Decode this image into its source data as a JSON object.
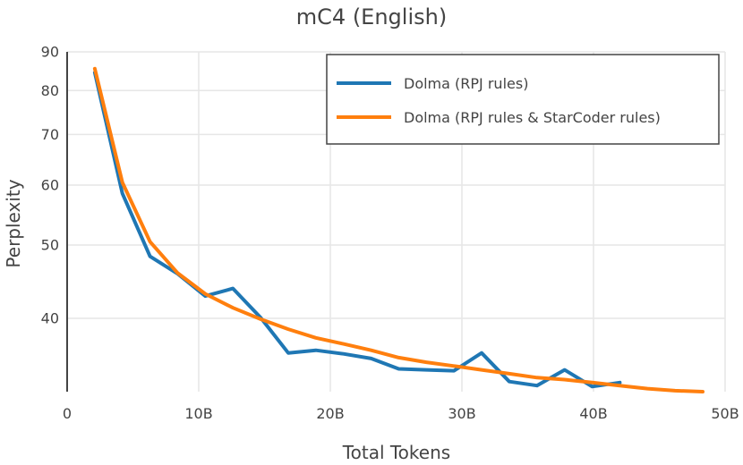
{
  "chart_data": {
    "type": "line",
    "title": "mC4 (English)",
    "xlabel": "Total Tokens",
    "ylabel": "Perplexity",
    "x_scale": "linear",
    "y_scale": "log",
    "xlim": [
      0,
      50000000000
    ],
    "ylim": [
      32,
      90
    ],
    "x_ticks": [
      {
        "value": 0,
        "label": "0"
      },
      {
        "value": 10000000000,
        "label": "10B"
      },
      {
        "value": 20000000000,
        "label": "20B"
      },
      {
        "value": 30000000000,
        "label": "30B"
      },
      {
        "value": 40000000000,
        "label": "40B"
      },
      {
        "value": 50000000000,
        "label": "50B"
      }
    ],
    "y_ticks": [
      {
        "value": 40,
        "label": "40"
      },
      {
        "value": 50,
        "label": "50"
      },
      {
        "value": 60,
        "label": "60"
      },
      {
        "value": 70,
        "label": "70"
      },
      {
        "value": 80,
        "label": "80"
      },
      {
        "value": 90,
        "label": "90"
      }
    ],
    "grid": true,
    "legend_position": "top-right",
    "series": [
      {
        "name": "Dolma (RPJ rules)",
        "color": "#1f77b4",
        "points": [
          [
            2100000000,
            84.5
          ],
          [
            4200000000,
            58.5
          ],
          [
            6300000000,
            48.3
          ],
          [
            8400000000,
            45.8
          ],
          [
            10500000000,
            42.8
          ],
          [
            12600000000,
            43.8
          ],
          [
            14700000000,
            40.1
          ],
          [
            16800000000,
            36.0
          ],
          [
            18900000000,
            36.3
          ],
          [
            21000000000,
            35.9
          ],
          [
            23100000000,
            35.4
          ],
          [
            25200000000,
            34.3
          ],
          [
            27300000000,
            34.2
          ],
          [
            29400000000,
            34.1
          ],
          [
            31500000000,
            36.0
          ],
          [
            33600000000,
            33.0
          ],
          [
            35700000000,
            32.6
          ],
          [
            37800000000,
            34.2
          ],
          [
            39900000000,
            32.5
          ],
          [
            42000000000,
            32.9
          ]
        ]
      },
      {
        "name": "Dolma (RPJ rules & StarCoder rules)",
        "color": "#ff7f0e",
        "points": [
          [
            2100000000,
            85.5
          ],
          [
            4200000000,
            60.5
          ],
          [
            6300000000,
            50.5
          ],
          [
            8400000000,
            45.9
          ],
          [
            10500000000,
            43.1
          ],
          [
            12600000000,
            41.3
          ],
          [
            14700000000,
            39.9
          ],
          [
            16800000000,
            38.7
          ],
          [
            18900000000,
            37.7
          ],
          [
            21000000000,
            37.0
          ],
          [
            23100000000,
            36.3
          ],
          [
            25200000000,
            35.5
          ],
          [
            27300000000,
            35.0
          ],
          [
            29400000000,
            34.6
          ],
          [
            31500000000,
            34.2
          ],
          [
            33600000000,
            33.8
          ],
          [
            35700000000,
            33.4
          ],
          [
            37800000000,
            33.2
          ],
          [
            39900000000,
            32.9
          ],
          [
            42000000000,
            32.6
          ],
          [
            44100000000,
            32.3
          ],
          [
            46200000000,
            32.1
          ],
          [
            48300000000,
            32.0
          ]
        ]
      }
    ]
  }
}
